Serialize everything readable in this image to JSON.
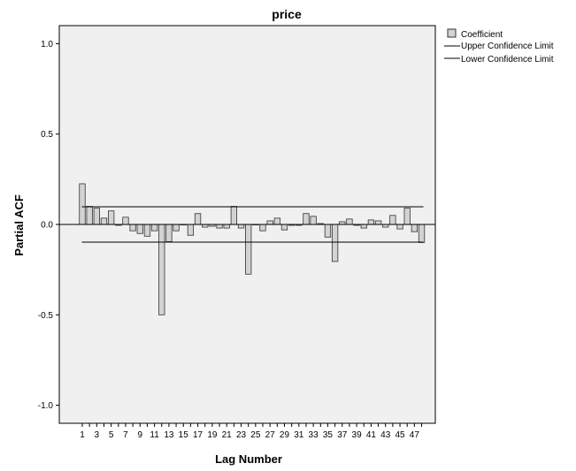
{
  "chart_data": {
    "type": "bar",
    "title": "price",
    "xlabel": "Lag Number",
    "ylabel": "Partial ACF",
    "ylim": [
      -1.1,
      1.1
    ],
    "yticks": [
      "1.0",
      "0.5",
      "0.0",
      "-0.5",
      "-1.0"
    ],
    "ytick_values": [
      1.0,
      0.5,
      0.0,
      -0.5,
      -1.0
    ],
    "xtick_labels": [
      "1",
      "3",
      "5",
      "7",
      "9",
      "11",
      "13",
      "15",
      "17",
      "19",
      "21",
      "23",
      "25",
      "27",
      "29",
      "31",
      "33",
      "35",
      "37",
      "39",
      "41",
      "43",
      "45",
      "47"
    ],
    "lags": [
      1,
      2,
      3,
      4,
      5,
      6,
      7,
      8,
      9,
      10,
      11,
      12,
      13,
      14,
      15,
      16,
      17,
      18,
      19,
      20,
      21,
      22,
      23,
      24,
      25,
      26,
      27,
      28,
      29,
      30,
      31,
      32,
      33,
      34,
      35,
      36,
      37,
      38,
      39,
      40,
      41,
      42,
      43,
      44,
      45,
      46,
      47,
      48
    ],
    "values": [
      0.225,
      0.1,
      0.09,
      0.035,
      0.075,
      -0.005,
      0.04,
      -0.035,
      -0.05,
      -0.065,
      -0.035,
      -0.5,
      -0.095,
      -0.035,
      0.0,
      -0.06,
      0.06,
      -0.015,
      -0.01,
      -0.02,
      -0.02,
      0.1,
      -0.02,
      -0.275,
      0.0,
      -0.035,
      0.02,
      0.035,
      -0.03,
      -0.005,
      -0.005,
      0.06,
      0.045,
      0.005,
      -0.07,
      -0.205,
      0.015,
      0.03,
      -0.005,
      -0.02,
      0.025,
      0.02,
      -0.015,
      0.05,
      -0.025,
      0.09,
      -0.04,
      -0.1
    ],
    "upper_confidence_limit": 0.098,
    "lower_confidence_limit": -0.098,
    "grid": false,
    "legend_position": "top-right",
    "legend": [
      {
        "label": "Coefficient",
        "kind": "bar"
      },
      {
        "label": "Upper Confidence Limit",
        "kind": "line"
      },
      {
        "label": "Lower Confidence Limit",
        "kind": "line"
      }
    ],
    "colors": {
      "plot_background": "#f0f0f0",
      "bar_fill": "#d3d3d3",
      "bar_stroke": "#333333",
      "line": "#000000"
    }
  }
}
